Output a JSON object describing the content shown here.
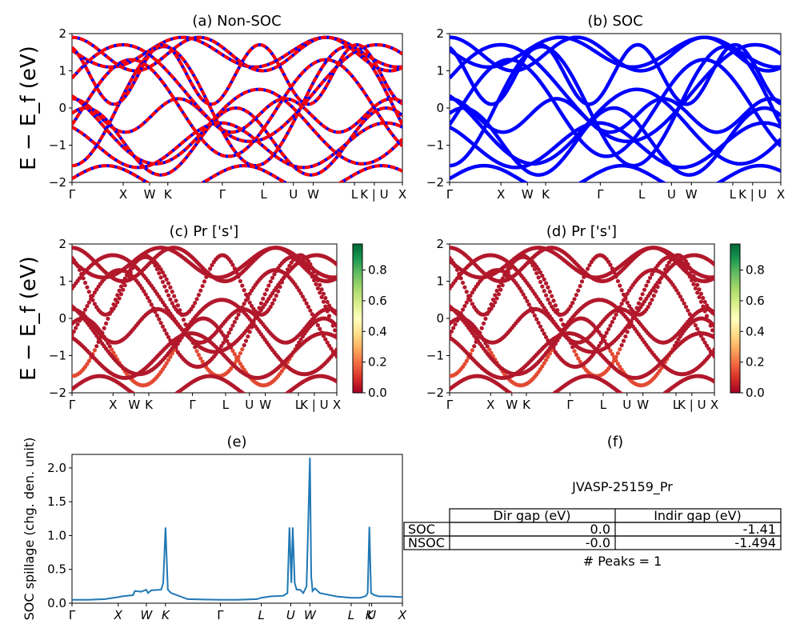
{
  "colors": {
    "red": "#ff0000",
    "blue": "#0000ff",
    "line": "#1f77b4"
  },
  "colormap": "RdYlGn",
  "panels": {
    "a": {
      "title": "(a) Non-SOC"
    },
    "b": {
      "title": "(b) SOC"
    },
    "c": {
      "title": "(c)  Pr ['s']"
    },
    "d": {
      "title": "(d) Pr ['s']"
    },
    "e": {
      "title": "(e)"
    },
    "f": {
      "title": "(f)"
    }
  },
  "band_ylabel": "E − E_f (eV)",
  "kpath_labels": [
    "Γ",
    "X",
    "W",
    "K",
    "Γ",
    "L",
    "U",
    "W",
    "L",
    "K | U",
    "X"
  ],
  "colorbar_ticks": [
    "0.0",
    "0.2",
    "0.4",
    "0.6",
    "0.8"
  ],
  "spillage_ylabel": "SOC spillage (chg. den. unit)",
  "spillage_xlabels": [
    "Γ",
    "X",
    "W",
    "K",
    "Γ",
    "L",
    "U",
    "W",
    "L",
    "K",
    "U",
    "X"
  ],
  "table": {
    "title": "JVASP-25159_Pr",
    "headers": [
      "Dir gap (eV)",
      "Indir gap (eV)"
    ],
    "rows": [
      {
        "label": "SOC",
        "dir": "0.0",
        "indir": "-1.41"
      },
      {
        "label": "NSOC",
        "dir": "-0.0",
        "indir": "-1.494"
      }
    ],
    "footer": "# Peaks = 1"
  },
  "chart_data": [
    {
      "type": "line",
      "title": "(a) Non-SOC",
      "ylabel": "E − E_f (eV)",
      "ylim": [
        -2,
        2
      ],
      "yticks": [
        -2,
        -1,
        0,
        1,
        2
      ],
      "xticks": [
        "Γ",
        "X",
        "W",
        "K",
        "Γ",
        "L",
        "U",
        "W",
        "L",
        "K | U",
        "X"
      ],
      "series": [
        {
          "color": "#ff0000"
        },
        {
          "color": "#0000ff"
        }
      ]
    },
    {
      "type": "line",
      "title": "(b) SOC",
      "ylim": [
        -2,
        2
      ],
      "yticks": [
        -2,
        -1,
        0,
        1,
        2
      ],
      "xticks": [
        "Γ",
        "X",
        "W",
        "K",
        "Γ",
        "L",
        "U",
        "W",
        "L",
        "K | U",
        "X"
      ],
      "series": [
        {
          "color": "#0000ff"
        }
      ]
    },
    {
      "type": "scatter",
      "title": "(c)  Pr ['s']",
      "ylabel": "E − E_f (eV)",
      "ylim": [
        -2,
        2
      ],
      "yticks": [
        -2,
        -1,
        0,
        1,
        2
      ],
      "xticks": [
        "Γ",
        "X",
        "W",
        "K",
        "Γ",
        "L",
        "U",
        "W",
        "L",
        "K | U",
        "X"
      ],
      "colorbar": {
        "range": [
          0,
          0.97
        ],
        "ticks": [
          0,
          0.2,
          0.4,
          0.6,
          0.8
        ]
      }
    },
    {
      "type": "scatter",
      "title": "(d) Pr ['s']",
      "ylim": [
        -2,
        2
      ],
      "yticks": [
        -2,
        -1,
        0,
        1,
        2
      ],
      "xticks": [
        "Γ",
        "X",
        "W",
        "K",
        "Γ",
        "L",
        "U",
        "W",
        "L",
        "K | U",
        "X"
      ],
      "colorbar": {
        "range": [
          0,
          0.97
        ],
        "ticks": [
          0,
          0.2,
          0.4,
          0.6,
          0.8
        ]
      }
    },
    {
      "type": "line",
      "title": "(e)",
      "ylabel": "SOC spillage (chg. den. unit)",
      "ylim": [
        0,
        2.2
      ],
      "yticks": [
        0.0,
        0.5,
        1.0,
        1.5,
        2.0
      ],
      "xticks": [
        "Γ",
        "X",
        "W",
        "K",
        "Γ",
        "L",
        "U",
        "W",
        "L",
        "K",
        "U",
        "X"
      ],
      "xtick_pos": [
        0,
        0.14,
        0.225,
        0.283,
        0.449,
        0.573,
        0.662,
        0.72,
        0.845,
        0.9,
        0.907,
        1.0
      ],
      "series": [
        {
          "color": "#1f77b4",
          "x": [
            0,
            0.05,
            0.1,
            0.14,
            0.15,
            0.185,
            0.19,
            0.21,
            0.225,
            0.23,
            0.24,
            0.27,
            0.276,
            0.283,
            0.29,
            0.3,
            0.35,
            0.449,
            0.5,
            0.56,
            0.573,
            0.6,
            0.64,
            0.652,
            0.658,
            0.664,
            0.668,
            0.674,
            0.68,
            0.69,
            0.7,
            0.71,
            0.72,
            0.724,
            0.728,
            0.735,
            0.75,
            0.8,
            0.845,
            0.87,
            0.88,
            0.89,
            0.895,
            0.9,
            0.905,
            0.915,
            0.93,
            0.96,
            1.0
          ],
          "y": [
            0.05,
            0.05,
            0.06,
            0.09,
            0.1,
            0.12,
            0.18,
            0.17,
            0.2,
            0.15,
            0.19,
            0.2,
            0.3,
            1.12,
            0.2,
            0.15,
            0.06,
            0.05,
            0.05,
            0.06,
            0.08,
            0.1,
            0.11,
            0.15,
            1.12,
            0.3,
            1.12,
            0.3,
            0.2,
            0.2,
            0.15,
            0.25,
            2.15,
            0.4,
            0.18,
            0.22,
            0.15,
            0.1,
            0.08,
            0.08,
            0.09,
            0.11,
            0.15,
            1.13,
            0.15,
            0.12,
            0.1,
            0.1,
            0.09
          ]
        }
      ]
    }
  ]
}
